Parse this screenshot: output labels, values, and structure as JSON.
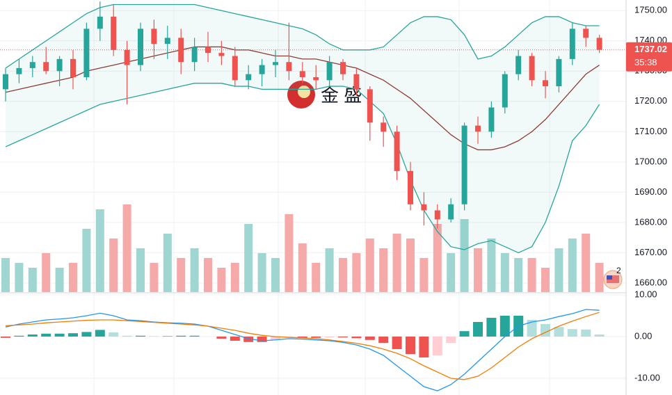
{
  "chart_data": [
    {
      "type": "candlestick",
      "watermark": "金 盛",
      "countdown": "35:38",
      "event_badge": "2",
      "up_color": "#26a69a",
      "down_color": "#ef5350",
      "volume_up_color": "#9fd6d1",
      "volume_down_color": "#f5a9a8",
      "ylim": [
        1657,
        1753.5
      ],
      "yticks": [
        {
          "value": 1660,
          "label": "1660.00"
        },
        {
          "value": 1670,
          "label": "1670.00"
        },
        {
          "value": 1680,
          "label": "1680.00"
        },
        {
          "value": 1690,
          "label": "1690.00"
        },
        {
          "value": 1700,
          "label": "1700.00"
        },
        {
          "value": 1710,
          "label": "1710.00"
        },
        {
          "value": 1720,
          "label": "1720.00"
        },
        {
          "value": 1730,
          "label": "1730.00"
        },
        {
          "value": 1740,
          "label": "1740.00"
        },
        {
          "value": 1750,
          "label": "1750.00"
        }
      ],
      "open": [
        1724,
        1729,
        1731,
        1733,
        1730,
        1734,
        1728,
        1744,
        1748,
        1737,
        1732,
        1744,
        1739,
        1741,
        1733,
        1738,
        1736,
        1735,
        1727,
        1729,
        1732,
        1733,
        1730,
        1728,
        1727,
        1733,
        1729,
        1724,
        1713,
        1710,
        1697,
        1686,
        1684,
        1681,
        1686,
        1712,
        1710,
        1718,
        1729,
        1735,
        1727,
        1725,
        1734,
        1744,
        1741
      ],
      "high": [
        1731,
        1734,
        1735,
        1738,
        1735,
        1737,
        1746,
        1753,
        1752,
        1740,
        1746,
        1747,
        1745,
        1744,
        1741,
        1743,
        1740,
        1738,
        1732,
        1734,
        1737,
        1746,
        1733,
        1732,
        1735,
        1734,
        1731,
        1725,
        1715,
        1712,
        1700,
        1690,
        1686,
        1688,
        1713,
        1715,
        1720,
        1730,
        1737,
        1736,
        1730,
        1735,
        1746,
        1745,
        1742
      ],
      "low": [
        1720,
        1726,
        1728,
        1729,
        1725,
        1724,
        1727,
        1740,
        1735,
        1719,
        1730,
        1734,
        1734,
        1729,
        1730,
        1733,
        1732,
        1725,
        1724,
        1725,
        1728,
        1727,
        1726,
        1724,
        1725,
        1727,
        1722,
        1707,
        1705,
        1694,
        1684,
        1679,
        1678,
        1680,
        1684,
        1706,
        1708,
        1716,
        1727,
        1725,
        1721,
        1723,
        1732,
        1738,
        1736
      ],
      "close": [
        1729,
        1731,
        1733,
        1730,
        1734,
        1728,
        1744,
        1748,
        1737,
        1732,
        1744,
        1739,
        1741,
        1733,
        1738,
        1736,
        1735,
        1727,
        1729,
        1732,
        1733,
        1730,
        1728,
        1727,
        1733,
        1729,
        1724,
        1713,
        1710,
        1697,
        1686,
        1684,
        1681,
        1686,
        1712,
        1710,
        1718,
        1729,
        1735,
        1727,
        1725,
        1734,
        1744,
        1741,
        1737.02
      ],
      "volume": [
        35,
        30,
        25,
        40,
        25,
        30,
        65,
        85,
        55,
        90,
        45,
        30,
        60,
        35,
        45,
        35,
        25,
        30,
        70,
        40,
        35,
        80,
        50,
        30,
        45,
        35,
        40,
        55,
        45,
        60,
        55,
        35,
        70,
        40,
        75,
        45,
        55,
        40,
        35,
        35,
        25,
        45,
        55,
        60,
        30
      ],
      "volume_lim": [
        0,
        100
      ],
      "bollinger": {
        "band_color": "#26a69a",
        "middle_color": "#8d3b36",
        "upper": [
          1731,
          1734,
          1737,
          1740,
          1743,
          1746,
          1749,
          1751,
          1752,
          1752,
          1752,
          1752,
          1752,
          1752,
          1752,
          1751,
          1750,
          1749,
          1748,
          1747,
          1746,
          1745,
          1744,
          1742,
          1739,
          1737,
          1737,
          1737,
          1738,
          1742,
          1746,
          1748,
          1748,
          1747,
          1742,
          1734,
          1735,
          1738,
          1742,
          1746,
          1748,
          1748,
          1746,
          1745,
          1745
        ],
        "middle": [
          1723,
          1724,
          1725,
          1726,
          1727,
          1728,
          1730,
          1731,
          1732,
          1733,
          1734,
          1735,
          1736,
          1737,
          1738,
          1738,
          1738,
          1737,
          1737,
          1736,
          1735,
          1735,
          1734,
          1734,
          1733,
          1732,
          1731,
          1729,
          1727,
          1724,
          1721,
          1717,
          1713,
          1709,
          1706,
          1704,
          1704,
          1705,
          1707,
          1710,
          1714,
          1719,
          1724,
          1729,
          1732
        ],
        "lower": [
          1705,
          1707,
          1709,
          1711,
          1713,
          1715,
          1717,
          1719,
          1720,
          1721,
          1722,
          1723,
          1724,
          1725,
          1726,
          1726,
          1726,
          1725,
          1725,
          1724,
          1724,
          1724,
          1724,
          1724,
          1725,
          1725,
          1724,
          1720,
          1716,
          1706,
          1694,
          1684,
          1677,
          1672,
          1671,
          1673,
          1674,
          1672,
          1670,
          1672,
          1680,
          1692,
          1707,
          1712,
          1719
        ]
      }
    },
    {
      "type": "macd",
      "ylim": [
        -14,
        10.33
      ],
      "yticks": [
        {
          "value": 10,
          "label": "10.00"
        },
        {
          "value": 0,
          "label": "0.00"
        },
        {
          "value": -10,
          "label": "-10.00"
        }
      ],
      "macd_color": "#2196f3",
      "signal_color": "#f57c00",
      "hist_colors": [
        "#26a69a",
        "#b2dfdb",
        "#ef5350",
        "#ffcdd2"
      ],
      "macd": [
        2.3,
        3,
        3.5,
        4,
        4.2,
        4.5,
        5,
        5.6,
        5,
        4,
        3.8,
        3.5,
        3.3,
        3.2,
        3,
        2.5,
        1.5,
        0.5,
        -0.5,
        -1,
        -0.8,
        -0.5,
        -0.6,
        -0.8,
        -1,
        -1.4,
        -2,
        -3,
        -4.5,
        -7,
        -9.5,
        -12,
        -13,
        -11.5,
        -9,
        -6,
        -3,
        0,
        2.5,
        3.5,
        4,
        4.8,
        5.5,
        6.5,
        6.3
      ],
      "signal": [
        2.6,
        2.8,
        3,
        3.3,
        3.5,
        3.7,
        3.9,
        4,
        4,
        3.8,
        3.6,
        3.4,
        3.2,
        3,
        2.8,
        2.5,
        2,
        1.5,
        0.8,
        0.3,
        0,
        -0.2,
        -0.3,
        -0.5,
        -0.8,
        -1.2,
        -1.6,
        -2.2,
        -3,
        -4,
        -5.3,
        -7,
        -8.5,
        -10,
        -10.3,
        -9.5,
        -7.5,
        -5,
        -2.5,
        -0.5,
        1,
        2.5,
        3.7,
        4.8,
        5.8
      ],
      "histogram": [
        -0.3,
        0.2,
        0.5,
        0.7,
        0.7,
        0.8,
        1.1,
        1.6,
        1,
        0.2,
        0.2,
        0.1,
        0.1,
        0.2,
        0.2,
        0,
        -0.5,
        -1,
        -1.3,
        -1.3,
        -0.8,
        -0.3,
        -0.3,
        -0.3,
        -0.2,
        -0.2,
        -0.4,
        -0.8,
        -1.5,
        -3,
        -4.2,
        -5,
        -4.5,
        -1.5,
        1.3,
        3.5,
        4.5,
        5,
        5,
        4,
        3,
        2.3,
        1.8,
        1.7,
        0.5
      ]
    }
  ]
}
